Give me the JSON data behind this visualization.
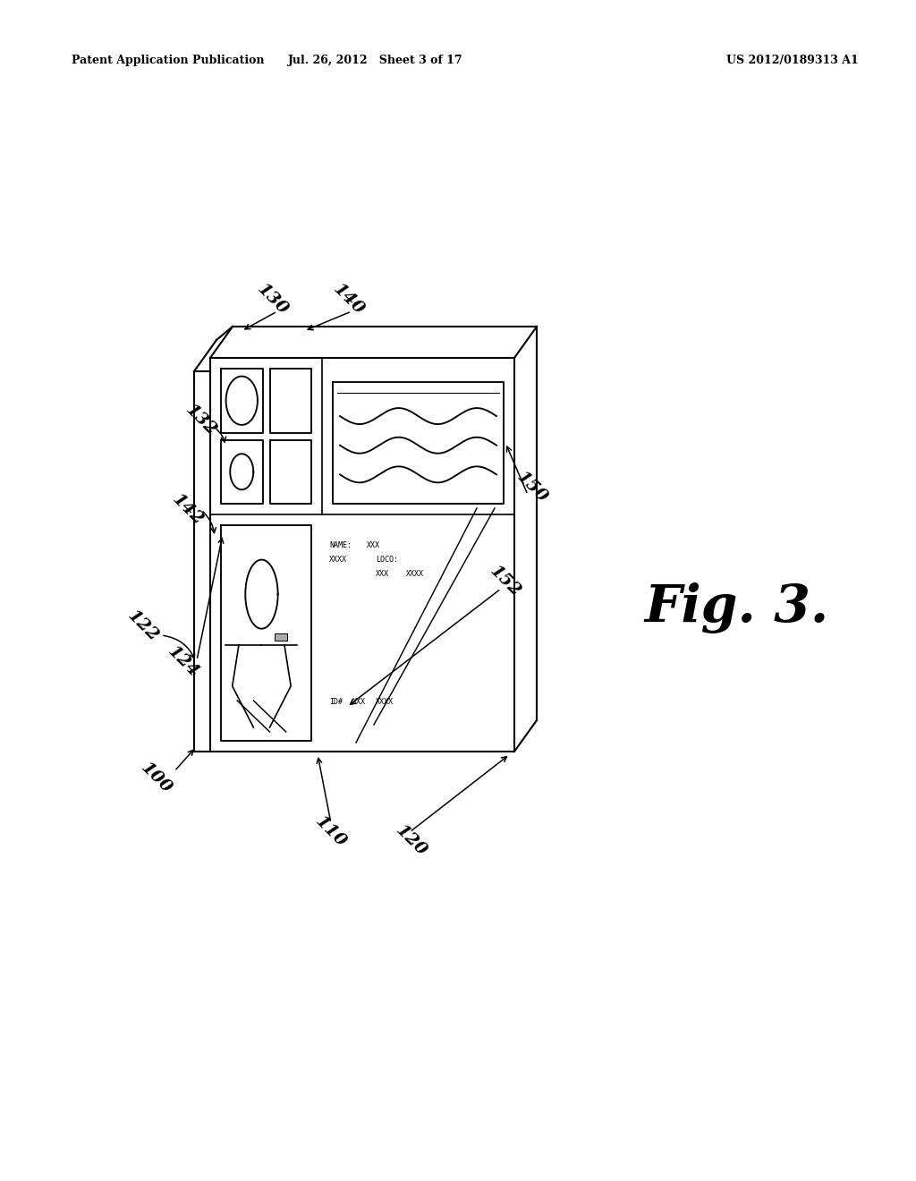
{
  "bg_color": "#ffffff",
  "header_left": "Patent Application Publication",
  "header_mid": "Jul. 26, 2012   Sheet 3 of 17",
  "header_right": "US 2012/0189313 A1",
  "fig_label": "Fig. 3."
}
